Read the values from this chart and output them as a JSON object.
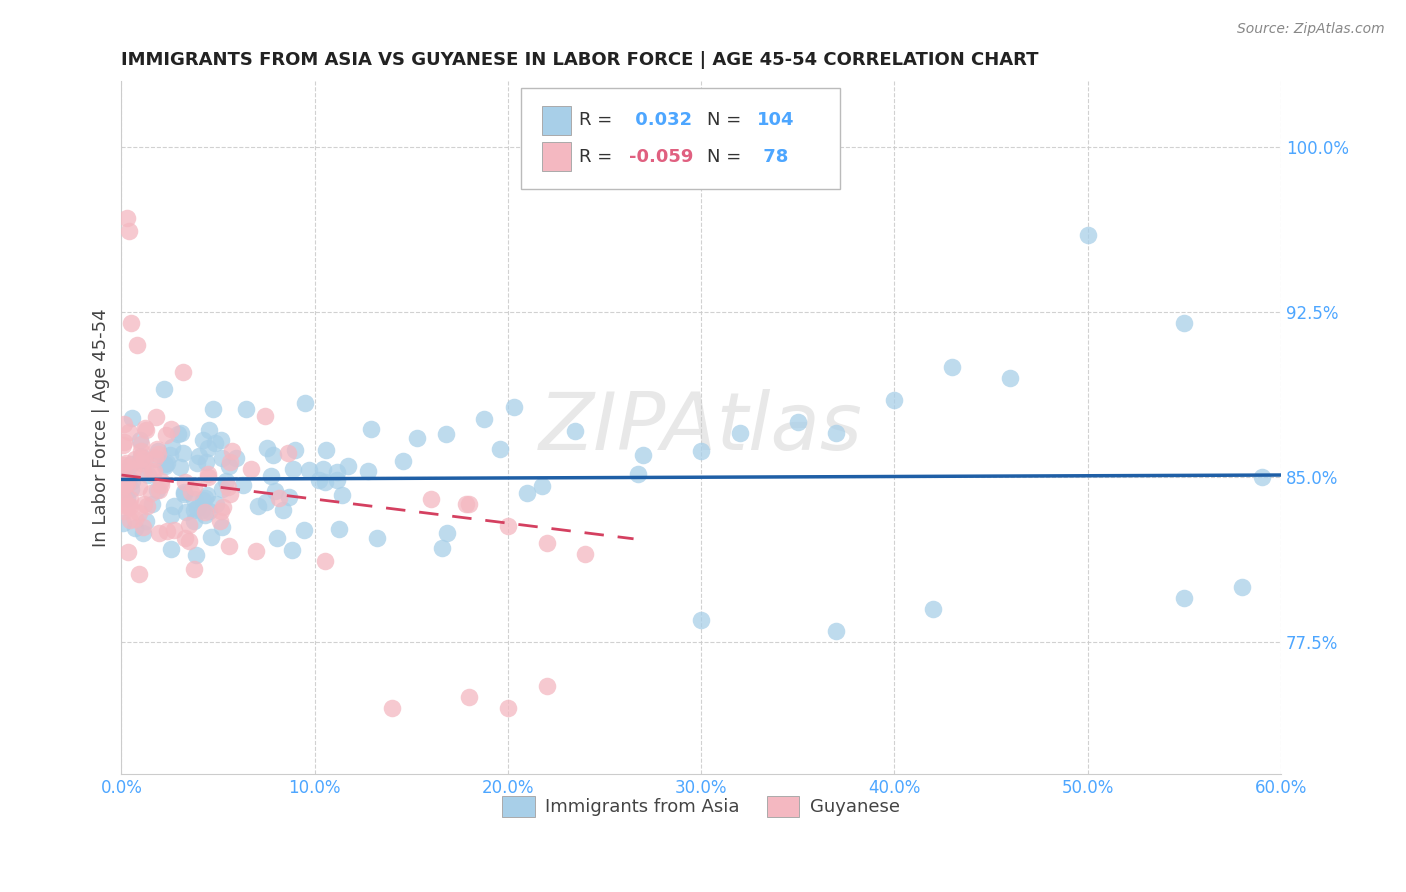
{
  "title": "IMMIGRANTS FROM ASIA VS GUYANESE IN LABOR FORCE | AGE 45-54 CORRELATION CHART",
  "source": "Source: ZipAtlas.com",
  "ylabel_text": "In Labor Force | Age 45-54",
  "x_min": 0.0,
  "x_max": 0.6,
  "y_min": 0.715,
  "y_max": 1.03,
  "color_asia": "#a8cfe8",
  "color_guyanese": "#f4b8c1",
  "color_asia_line": "#1f5fa6",
  "color_guyanese_line": "#d44060",
  "color_tick": "#4da6ff",
  "watermark": "ZIPAtlas",
  "background_color": "#ffffff",
  "grid_color": "#cccccc",
  "legend_r1_label": "R = ",
  "legend_r1_val": " 0.032",
  "legend_n1_label": "N = ",
  "legend_n1_val": "104",
  "legend_r2_label": "R = ",
  "legend_r2_val": "-0.059",
  "legend_n2_label": "N = ",
  "legend_n2_val": " 78"
}
